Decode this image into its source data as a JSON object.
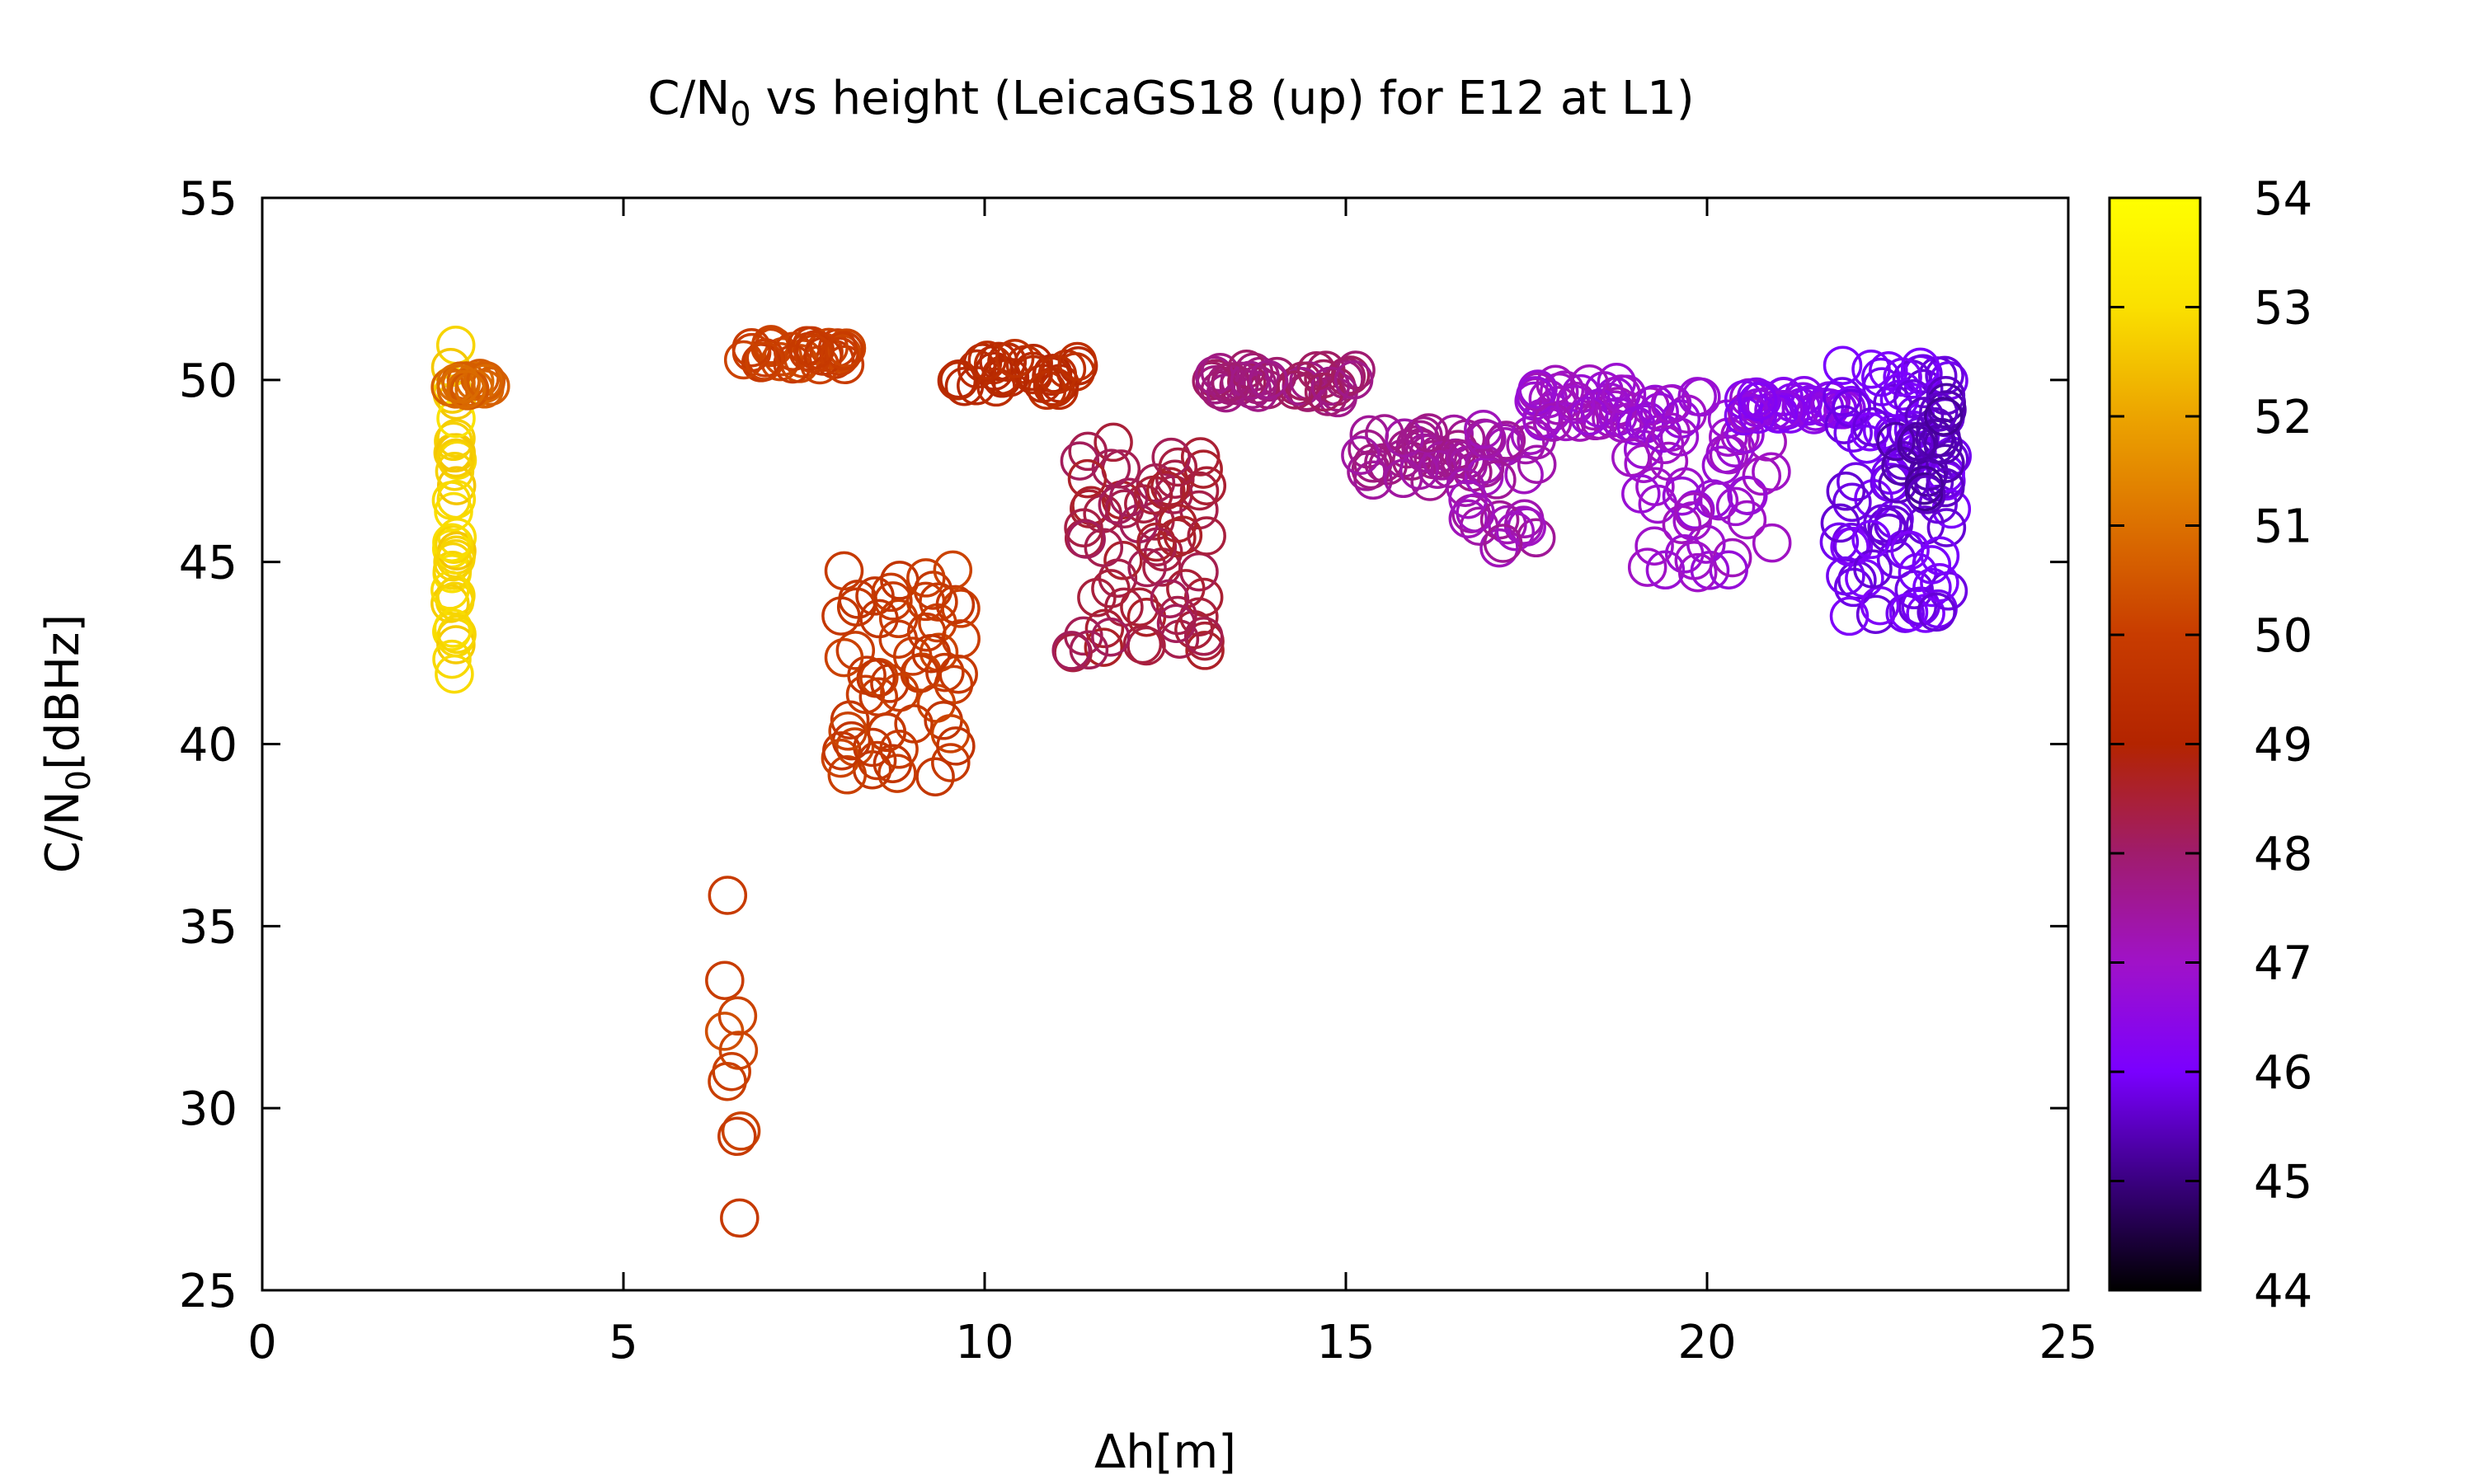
{
  "chart_data": {
    "type": "scatter",
    "title": {
      "pre": "C/N",
      "sub": "0",
      "post": " vs height (LeicaGS18 (up) for E12 at L1)"
    },
    "xlabel": "Δh[m]",
    "ylabel": {
      "pre": "C/N",
      "sub": "0",
      "post": "[dBHz]"
    },
    "xlim": [
      0,
      25
    ],
    "ylim": [
      25,
      55
    ],
    "xticks": [
      "0",
      "5",
      "10",
      "15",
      "20",
      "25"
    ],
    "yticks": [
      "25",
      "30",
      "35",
      "40",
      "45",
      "50",
      "55"
    ],
    "colorbar": {
      "range": [
        44,
        54
      ],
      "ticks": [
        "44",
        "45",
        "46",
        "47",
        "48",
        "49",
        "50",
        "51",
        "52",
        "53",
        "54"
      ],
      "palette": [
        "#000000",
        "#3a0080",
        "#7a00ff",
        "#a012c8",
        "#a01c6c",
        "#b32400",
        "#c83c00",
        "#dc7000",
        "#eca400",
        "#fae000",
        "#ffff00"
      ]
    },
    "marker": "open-circle",
    "grid": false,
    "clusters": [
      {
        "x": [
          2.6,
          2.7
        ],
        "y": [
          41,
          51
        ],
        "c": 52.8,
        "n": 40
      },
      {
        "x": [
          2.6,
          3.3
        ],
        "y": [
          49.7,
          50.1
        ],
        "c": 50.7,
        "n": 18
      },
      {
        "x": [
          6.3,
          6.7
        ],
        "y": [
          26.7,
          36
        ],
        "c": 50.1,
        "n": 10
      },
      {
        "x": [
          6.6,
          8.1
        ],
        "y": [
          50.4,
          51.0
        ],
        "c": 50.0,
        "n": 35
      },
      {
        "x": [
          8.0,
          9.7
        ],
        "y": [
          39,
          45
        ],
        "c": 49.9,
        "n": 60
      },
      {
        "x": [
          9.6,
          11.3
        ],
        "y": [
          49.7,
          50.6
        ],
        "c": 49.3,
        "n": 35
      },
      {
        "x": [
          11.2,
          13.2
        ],
        "y": [
          42.5,
          48.5
        ],
        "c": 48.4,
        "n": 70
      },
      {
        "x": [
          13.1,
          15.2
        ],
        "y": [
          49.5,
          50.3
        ],
        "c": 47.9,
        "n": 45
      },
      {
        "x": [
          15.2,
          16.8
        ],
        "y": [
          47.2,
          48.6
        ],
        "c": 47.6,
        "n": 40
      },
      {
        "x": [
          16.6,
          17.7
        ],
        "y": [
          44.4,
          48.8
        ],
        "c": 47.3,
        "n": 30
      },
      {
        "x": [
          17.6,
          19.0
        ],
        "y": [
          48.8,
          50.0
        ],
        "c": 47.0,
        "n": 40
      },
      {
        "x": [
          18.9,
          20.9
        ],
        "y": [
          44.7,
          49.6
        ],
        "c": 46.9,
        "n": 60
      },
      {
        "x": [
          20.5,
          22.0
        ],
        "y": [
          49.0,
          49.6
        ],
        "c": 46.4,
        "n": 35
      },
      {
        "x": [
          21.8,
          23.4
        ],
        "y": [
          43.5,
          50.5
        ],
        "c": 45.9,
        "n": 90
      },
      {
        "x": [
          22.6,
          23.4
        ],
        "y": [
          46.8,
          49.8
        ],
        "c": 45.4,
        "n": 25
      }
    ]
  }
}
